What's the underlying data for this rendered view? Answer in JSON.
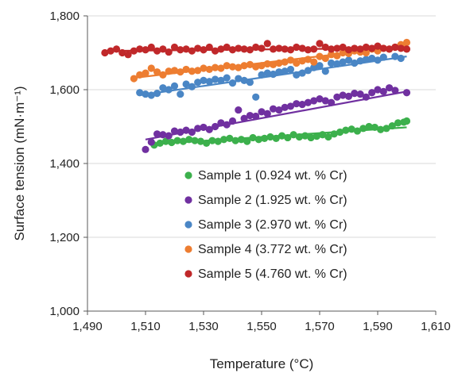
{
  "chart_data": {
    "type": "scatter",
    "title": "",
    "xlabel": "Temperature (°C)",
    "ylabel": "Surface tension (mN·m⁻¹)",
    "xlim": [
      1490,
      1610
    ],
    "ylim": [
      1000,
      1800
    ],
    "x_ticks": [
      1490,
      1510,
      1530,
      1550,
      1570,
      1590,
      1610
    ],
    "x_tick_labels": [
      "1,490",
      "1,510",
      "1,530",
      "1,550",
      "1,570",
      "1,590",
      "1,610"
    ],
    "y_ticks": [
      1000,
      1200,
      1400,
      1600,
      1800
    ],
    "y_tick_labels": [
      "1,000",
      "1,200",
      "1,400",
      "1,600",
      "1,800"
    ],
    "grid": "horizontal",
    "legend_position": "bottom-right inside",
    "series": [
      {
        "name": "Sample 1 (0.924 wt. % Cr)",
        "color": "#3cb04c",
        "trendline": [
          [
            1512,
            1452
          ],
          [
            1600,
            1498
          ]
        ],
        "points": [
          [
            1513,
            1450
          ],
          [
            1515,
            1455
          ],
          [
            1517,
            1460
          ],
          [
            1519,
            1457
          ],
          [
            1521,
            1462
          ],
          [
            1523,
            1460
          ],
          [
            1525,
            1465
          ],
          [
            1527,
            1462
          ],
          [
            1529,
            1460
          ],
          [
            1531,
            1455
          ],
          [
            1533,
            1462
          ],
          [
            1535,
            1460
          ],
          [
            1537,
            1465
          ],
          [
            1539,
            1468
          ],
          [
            1541,
            1462
          ],
          [
            1543,
            1465
          ],
          [
            1545,
            1460
          ],
          [
            1547,
            1470
          ],
          [
            1549,
            1465
          ],
          [
            1551,
            1468
          ],
          [
            1553,
            1472
          ],
          [
            1555,
            1468
          ],
          [
            1557,
            1475
          ],
          [
            1559,
            1470
          ],
          [
            1561,
            1478
          ],
          [
            1563,
            1472
          ],
          [
            1565,
            1475
          ],
          [
            1567,
            1470
          ],
          [
            1569,
            1474
          ],
          [
            1571,
            1478
          ],
          [
            1573,
            1472
          ],
          [
            1575,
            1480
          ],
          [
            1577,
            1485
          ],
          [
            1579,
            1490
          ],
          [
            1581,
            1493
          ],
          [
            1583,
            1488
          ],
          [
            1585,
            1495
          ],
          [
            1587,
            1500
          ],
          [
            1589,
            1498
          ],
          [
            1591,
            1492
          ],
          [
            1593,
            1495
          ],
          [
            1595,
            1502
          ],
          [
            1597,
            1510
          ],
          [
            1599,
            1512
          ],
          [
            1600,
            1515
          ]
        ]
      },
      {
        "name": "Sample 2 (1.925 wt. % Cr)",
        "color": "#7030a0",
        "trendline": [
          [
            1510,
            1465
          ],
          [
            1600,
            1595
          ]
        ],
        "points": [
          [
            1510,
            1438
          ],
          [
            1512,
            1458
          ],
          [
            1514,
            1480
          ],
          [
            1516,
            1478
          ],
          [
            1518,
            1475
          ],
          [
            1520,
            1488
          ],
          [
            1522,
            1485
          ],
          [
            1524,
            1490
          ],
          [
            1526,
            1485
          ],
          [
            1528,
            1495
          ],
          [
            1530,
            1498
          ],
          [
            1532,
            1492
          ],
          [
            1534,
            1500
          ],
          [
            1536,
            1510
          ],
          [
            1538,
            1505
          ],
          [
            1540,
            1515
          ],
          [
            1542,
            1545
          ],
          [
            1544,
            1522
          ],
          [
            1546,
            1530
          ],
          [
            1548,
            1528
          ],
          [
            1550,
            1540
          ],
          [
            1552,
            1535
          ],
          [
            1554,
            1548
          ],
          [
            1556,
            1545
          ],
          [
            1558,
            1552
          ],
          [
            1560,
            1555
          ],
          [
            1562,
            1562
          ],
          [
            1564,
            1560
          ],
          [
            1566,
            1565
          ],
          [
            1568,
            1570
          ],
          [
            1570,
            1575
          ],
          [
            1572,
            1570
          ],
          [
            1574,
            1565
          ],
          [
            1576,
            1580
          ],
          [
            1578,
            1585
          ],
          [
            1580,
            1582
          ],
          [
            1582,
            1590
          ],
          [
            1584,
            1588
          ],
          [
            1586,
            1580
          ],
          [
            1588,
            1592
          ],
          [
            1590,
            1600
          ],
          [
            1592,
            1595
          ],
          [
            1594,
            1605
          ],
          [
            1596,
            1598
          ],
          [
            1600,
            1592
          ]
        ]
      },
      {
        "name": "Sample 3 (2.970 wt. % Cr)",
        "color": "#4a86c5",
        "trendline": [
          [
            1508,
            1585
          ],
          [
            1600,
            1690
          ]
        ],
        "points": [
          [
            1508,
            1592
          ],
          [
            1510,
            1588
          ],
          [
            1512,
            1585
          ],
          [
            1514,
            1590
          ],
          [
            1516,
            1605
          ],
          [
            1518,
            1600
          ],
          [
            1520,
            1610
          ],
          [
            1522,
            1588
          ],
          [
            1524,
            1615
          ],
          [
            1526,
            1608
          ],
          [
            1528,
            1620
          ],
          [
            1530,
            1625
          ],
          [
            1532,
            1622
          ],
          [
            1534,
            1628
          ],
          [
            1536,
            1625
          ],
          [
            1538,
            1632
          ],
          [
            1540,
            1618
          ],
          [
            1542,
            1630
          ],
          [
            1544,
            1625
          ],
          [
            1546,
            1620
          ],
          [
            1548,
            1580
          ],
          [
            1550,
            1640
          ],
          [
            1552,
            1645
          ],
          [
            1554,
            1642
          ],
          [
            1556,
            1648
          ],
          [
            1558,
            1650
          ],
          [
            1560,
            1655
          ],
          [
            1562,
            1640
          ],
          [
            1564,
            1645
          ],
          [
            1566,
            1652
          ],
          [
            1568,
            1660
          ],
          [
            1570,
            1665
          ],
          [
            1572,
            1650
          ],
          [
            1574,
            1672
          ],
          [
            1576,
            1670
          ],
          [
            1578,
            1675
          ],
          [
            1580,
            1680
          ],
          [
            1582,
            1672
          ],
          [
            1584,
            1678
          ],
          [
            1586,
            1682
          ],
          [
            1588,
            1685
          ],
          [
            1590,
            1680
          ],
          [
            1592,
            1688
          ],
          [
            1596,
            1690
          ],
          [
            1598,
            1685
          ]
        ]
      },
      {
        "name": "Sample 4 (3.772 wt. % Cr)",
        "color": "#ed7d31",
        "trendline": [
          [
            1506,
            1632
          ],
          [
            1600,
            1718
          ]
        ],
        "points": [
          [
            1506,
            1630
          ],
          [
            1508,
            1640
          ],
          [
            1510,
            1645
          ],
          [
            1512,
            1658
          ],
          [
            1514,
            1648
          ],
          [
            1516,
            1640
          ],
          [
            1518,
            1650
          ],
          [
            1520,
            1652
          ],
          [
            1522,
            1648
          ],
          [
            1524,
            1655
          ],
          [
            1526,
            1650
          ],
          [
            1528,
            1652
          ],
          [
            1530,
            1658
          ],
          [
            1532,
            1655
          ],
          [
            1534,
            1660
          ],
          [
            1536,
            1658
          ],
          [
            1538,
            1665
          ],
          [
            1540,
            1662
          ],
          [
            1542,
            1660
          ],
          [
            1544,
            1665
          ],
          [
            1546,
            1668
          ],
          [
            1548,
            1662
          ],
          [
            1550,
            1665
          ],
          [
            1552,
            1670
          ],
          [
            1554,
            1668
          ],
          [
            1556,
            1672
          ],
          [
            1558,
            1675
          ],
          [
            1560,
            1680
          ],
          [
            1562,
            1672
          ],
          [
            1564,
            1678
          ],
          [
            1566,
            1682
          ],
          [
            1568,
            1675
          ],
          [
            1570,
            1690
          ],
          [
            1572,
            1685
          ],
          [
            1574,
            1695
          ],
          [
            1576,
            1692
          ],
          [
            1578,
            1700
          ],
          [
            1580,
            1698
          ],
          [
            1582,
            1705
          ],
          [
            1584,
            1702
          ],
          [
            1586,
            1700
          ],
          [
            1588,
            1710
          ],
          [
            1590,
            1705
          ],
          [
            1592,
            1712
          ],
          [
            1594,
            1710
          ],
          [
            1596,
            1715
          ],
          [
            1598,
            1722
          ],
          [
            1600,
            1728
          ]
        ]
      },
      {
        "name": "Sample 5 (4.760 wt. % Cr)",
        "color": "#c0282a",
        "trendline": [
          [
            1496,
            1705
          ],
          [
            1600,
            1713
          ]
        ],
        "points": [
          [
            1496,
            1700
          ],
          [
            1498,
            1705
          ],
          [
            1500,
            1710
          ],
          [
            1502,
            1700
          ],
          [
            1504,
            1695
          ],
          [
            1506,
            1705
          ],
          [
            1508,
            1710
          ],
          [
            1510,
            1708
          ],
          [
            1512,
            1715
          ],
          [
            1514,
            1705
          ],
          [
            1516,
            1710
          ],
          [
            1518,
            1702
          ],
          [
            1520,
            1715
          ],
          [
            1522,
            1708
          ],
          [
            1524,
            1710
          ],
          [
            1526,
            1705
          ],
          [
            1528,
            1712
          ],
          [
            1530,
            1708
          ],
          [
            1532,
            1715
          ],
          [
            1534,
            1705
          ],
          [
            1536,
            1710
          ],
          [
            1538,
            1715
          ],
          [
            1540,
            1708
          ],
          [
            1542,
            1712
          ],
          [
            1544,
            1710
          ],
          [
            1546,
            1708
          ],
          [
            1548,
            1715
          ],
          [
            1550,
            1712
          ],
          [
            1552,
            1725
          ],
          [
            1554,
            1710
          ],
          [
            1556,
            1712
          ],
          [
            1558,
            1710
          ],
          [
            1560,
            1708
          ],
          [
            1562,
            1715
          ],
          [
            1564,
            1712
          ],
          [
            1566,
            1708
          ],
          [
            1568,
            1710
          ],
          [
            1570,
            1725
          ],
          [
            1572,
            1715
          ],
          [
            1574,
            1710
          ],
          [
            1576,
            1712
          ],
          [
            1578,
            1715
          ],
          [
            1580,
            1708
          ],
          [
            1582,
            1712
          ],
          [
            1584,
            1710
          ],
          [
            1586,
            1715
          ],
          [
            1588,
            1712
          ],
          [
            1590,
            1718
          ],
          [
            1592,
            1712
          ],
          [
            1594,
            1710
          ],
          [
            1596,
            1715
          ],
          [
            1598,
            1712
          ],
          [
            1600,
            1710
          ]
        ]
      }
    ]
  }
}
